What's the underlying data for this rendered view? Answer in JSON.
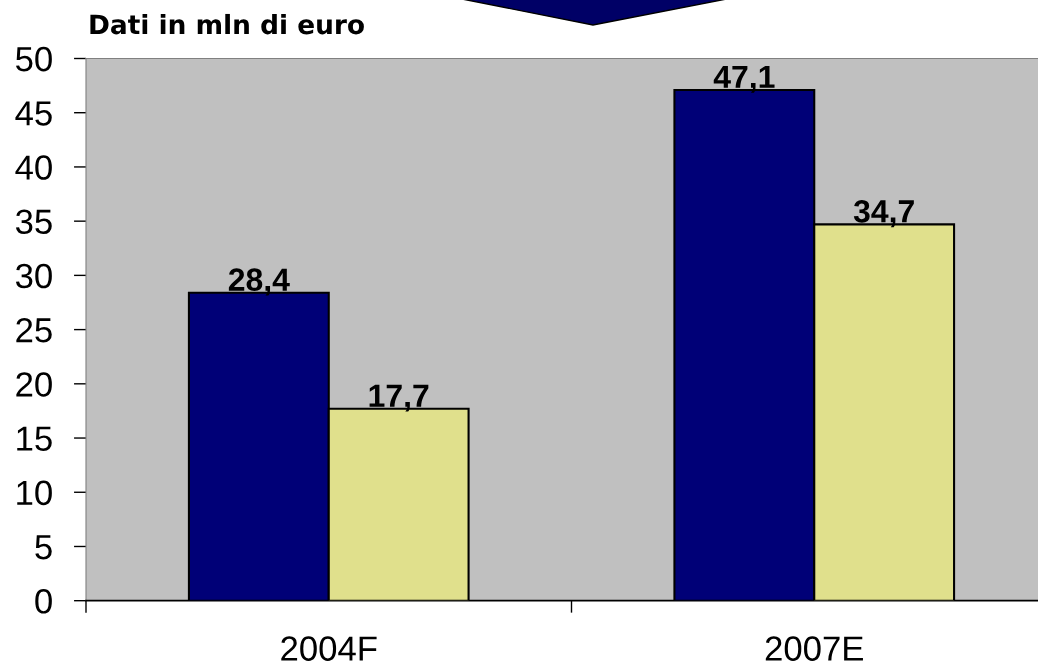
{
  "chart_data": {
    "type": "bar",
    "title": "Dati in mln di euro",
    "categories": [
      "2004F",
      "2007E"
    ],
    "series": [
      {
        "color": "#000077",
        "values": [
          28.4,
          47.1
        ],
        "value_labels": [
          "28,4",
          "47,1"
        ]
      },
      {
        "color": "#e0e08c",
        "values": [
          17.7,
          34.7
        ],
        "value_labels": [
          "17,7",
          "34,7"
        ]
      }
    ],
    "ylim": [
      0,
      50
    ],
    "yticks": [
      0,
      5,
      10,
      15,
      20,
      25,
      30,
      35,
      40,
      45,
      50
    ]
  }
}
